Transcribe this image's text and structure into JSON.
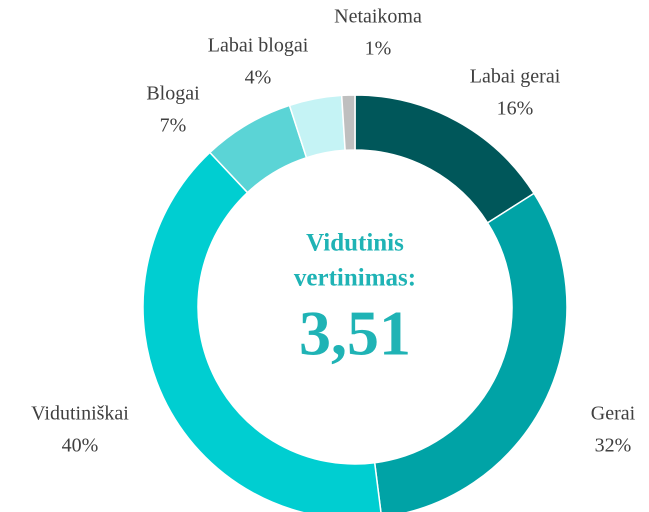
{
  "chart_data": {
    "type": "pie",
    "categories": [
      "Labai gerai",
      "Gerai",
      "Vidutiniškai",
      "Blogai",
      "Labai blogai",
      "Netaikoma"
    ],
    "values": [
      16,
      32,
      40,
      7,
      4,
      1
    ],
    "value_labels": [
      "16%",
      "32%",
      "40%",
      "7%",
      "4%",
      "1%"
    ],
    "colors": [
      "#00575a",
      "#00a3a6",
      "#00ced1",
      "#5bd4d6",
      "#c5f3f5",
      "#bfbfbf"
    ],
    "center_label": [
      "Vidutinis",
      "vertinimas:"
    ],
    "center_value": "3,51"
  }
}
